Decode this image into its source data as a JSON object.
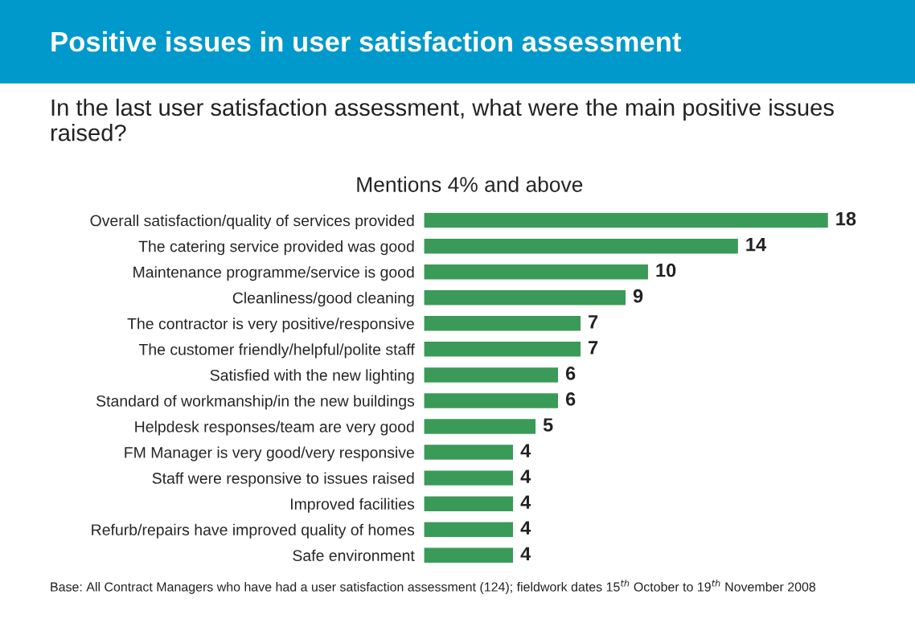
{
  "chart_data": {
    "type": "bar",
    "orientation": "horizontal",
    "title": "Positive issues in user satisfaction assessment",
    "subtitle": "In the last user satisfaction assessment, what were the main positive issues raised?",
    "xlabel": "Mentions 4% and above",
    "categories": [
      "Overall satisfaction/quality of services provided",
      "The catering service provided was good",
      "Maintenance programme/service is good",
      "Cleanliness/good cleaning",
      "The contractor is very positive/responsive",
      "The customer friendly/helpful/polite staff",
      "Satisfied with the new lighting",
      "Standard of workmanship/in the new buildings",
      "Helpdesk responses/team are very good",
      "FM Manager is very good/very responsive",
      "Staff were responsive to issues raised",
      "Improved facilities",
      "Refurb/repairs have improved quality of homes",
      "Safe environment"
    ],
    "values": [
      18,
      14,
      10,
      9,
      7,
      7,
      6,
      6,
      5,
      4,
      4,
      4,
      4,
      4
    ],
    "color": "#3a9a57",
    "data_labels": true,
    "grid": false,
    "legend": false,
    "annotations": [
      "Base: All Contract Managers who have had a user satisfaction assessment (124); fieldwork dates 15$^{th}$ October to 19$^{th}$ November 2008"
    ]
  }
}
